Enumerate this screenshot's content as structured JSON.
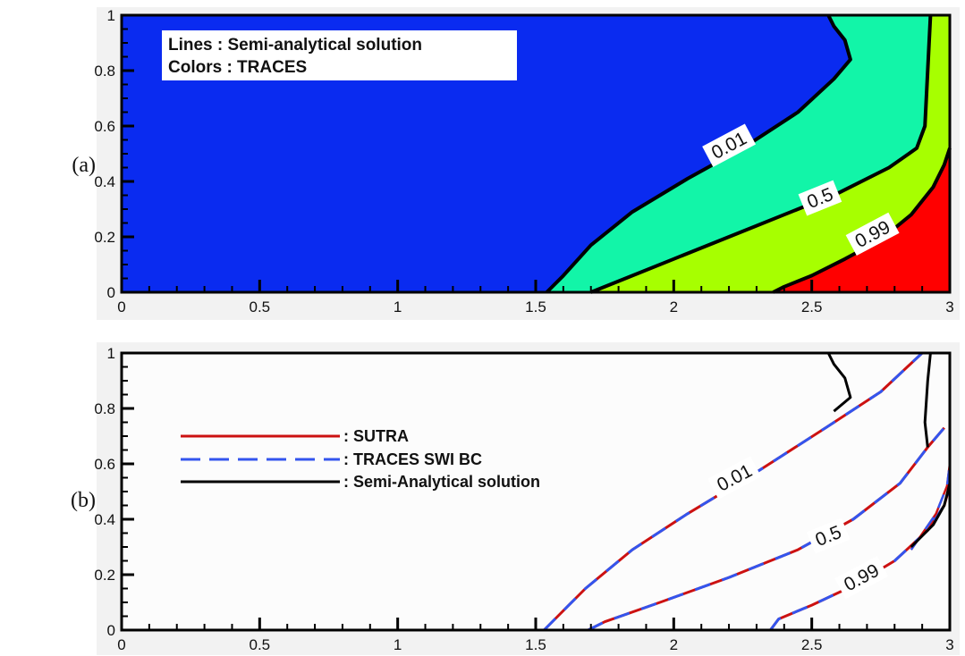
{
  "chart_data": [
    {
      "type": "contour",
      "panel_label": "(a)",
      "xlim": [
        0,
        3
      ],
      "ylim": [
        0,
        1
      ],
      "x_ticks": [
        "0",
        "0.5",
        "1",
        "1.5",
        "2",
        "2.5",
        "3"
      ],
      "y_ticks": [
        "0",
        "0.2",
        "0.4",
        "0.6",
        "0.8",
        "1"
      ],
      "legend_lines": [
        "Lines : Semi-analytical solution",
        "Colors : TRACES"
      ],
      "levels": [
        {
          "label": "0.01",
          "points": [
            [
              1.54,
              0
            ],
            [
              1.6,
              0.06
            ],
            [
              1.7,
              0.17
            ],
            [
              1.85,
              0.29
            ],
            [
              2.05,
              0.41
            ],
            [
              2.25,
              0.52
            ],
            [
              2.45,
              0.65
            ],
            [
              2.58,
              0.77
            ],
            [
              2.64,
              0.84
            ],
            [
              2.62,
              0.91
            ],
            [
              2.58,
              0.96
            ],
            [
              2.56,
              1.0
            ]
          ]
        },
        {
          "label": "0.5",
          "points": [
            [
              1.7,
              0
            ],
            [
              1.8,
              0.04
            ],
            [
              2.0,
              0.12
            ],
            [
              2.2,
              0.2
            ],
            [
              2.4,
              0.28
            ],
            [
              2.6,
              0.36
            ],
            [
              2.78,
              0.45
            ],
            [
              2.88,
              0.52
            ],
            [
              2.91,
              0.6
            ],
            [
              2.92,
              0.8
            ],
            [
              2.93,
              1.0
            ]
          ]
        },
        {
          "label": "0.99",
          "points": [
            [
              2.36,
              0
            ],
            [
              2.4,
              0.02
            ],
            [
              2.5,
              0.06
            ],
            [
              2.62,
              0.12
            ],
            [
              2.75,
              0.19
            ],
            [
              2.86,
              0.28
            ],
            [
              2.94,
              0.38
            ],
            [
              2.98,
              0.46
            ],
            [
              3.0,
              0.52
            ]
          ]
        }
      ],
      "colors": {
        "region_below_001": "#0a2bf0",
        "region_001_05": "#12f5a8",
        "region_05_099": "#a7ff00",
        "region_above_099": "#ff0000"
      }
    },
    {
      "type": "line",
      "panel_label": "(b)",
      "xlim": [
        0,
        3
      ],
      "ylim": [
        0,
        1
      ],
      "x_ticks": [
        "0",
        "0.5",
        "1",
        "1.5",
        "2",
        "2.5",
        "3"
      ],
      "y_ticks": [
        "0",
        "0.2",
        "0.4",
        "0.6",
        "0.8",
        "1"
      ],
      "legend": [
        {
          "name": ": SUTRA",
          "color": "#cc1111",
          "style": "solid"
        },
        {
          "name": ": TRACES SWI BC",
          "color": "#3355ee",
          "style": "dashed"
        },
        {
          "name": ": Semi-Analytical solution",
          "color": "#000000",
          "style": "solid"
        }
      ],
      "series": [
        {
          "label": "0.01",
          "model_points": [
            [
              1.53,
              0
            ],
            [
              1.58,
              0.05
            ],
            [
              1.68,
              0.15
            ],
            [
              1.85,
              0.29
            ],
            [
              2.05,
              0.42
            ],
            [
              2.3,
              0.57
            ],
            [
              2.55,
              0.73
            ],
            [
              2.75,
              0.86
            ],
            [
              2.9,
              1.0
            ]
          ],
          "analytic_points": [
            [
              2.56,
              1.0
            ],
            [
              2.58,
              0.96
            ],
            [
              2.62,
              0.91
            ],
            [
              2.64,
              0.84
            ],
            [
              2.58,
              0.79
            ]
          ]
        },
        {
          "label": "0.5",
          "model_points": [
            [
              1.69,
              0
            ],
            [
              1.75,
              0.03
            ],
            [
              1.95,
              0.1
            ],
            [
              2.2,
              0.19
            ],
            [
              2.45,
              0.29
            ],
            [
              2.65,
              0.4
            ],
            [
              2.82,
              0.53
            ],
            [
              2.92,
              0.66
            ],
            [
              2.98,
              0.73
            ]
          ],
          "analytic_points": [
            [
              2.92,
              0.66
            ],
            [
              2.91,
              0.75
            ],
            [
              2.92,
              0.9
            ],
            [
              2.93,
              1.0
            ]
          ]
        },
        {
          "label": "0.99",
          "model_points": [
            [
              2.35,
              0
            ],
            [
              2.38,
              0.04
            ],
            [
              2.5,
              0.09
            ],
            [
              2.65,
              0.16
            ],
            [
              2.8,
              0.25
            ],
            [
              2.92,
              0.36
            ],
            [
              2.98,
              0.45
            ],
            [
              3.0,
              0.52
            ]
          ],
          "analytic_points": [
            [
              2.86,
              0.3
            ],
            [
              2.94,
              0.38
            ],
            [
              2.98,
              0.45
            ],
            [
              3.0,
              0.53
            ]
          ],
          "model_points_upper": [
            [
              2.86,
              0.29
            ],
            [
              2.95,
              0.42
            ],
            [
              2.99,
              0.52
            ],
            [
              3.0,
              0.6
            ]
          ]
        }
      ]
    }
  ]
}
